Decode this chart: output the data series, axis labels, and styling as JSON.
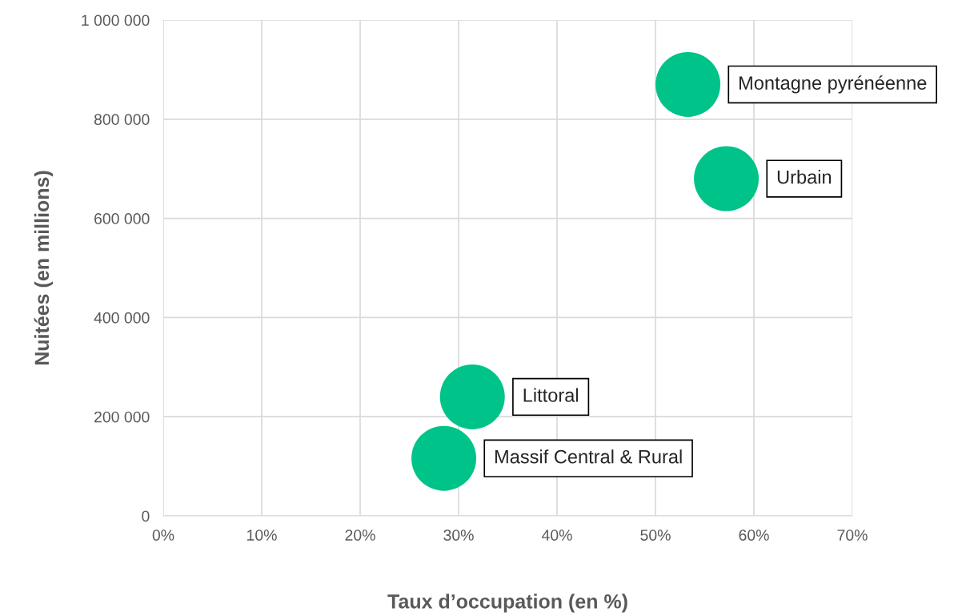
{
  "chart_data": {
    "type": "scatter",
    "xlabel": "Taux d’occupation (en %)",
    "ylabel": "Nuitées (en millions)",
    "x": [
      53.3,
      57.2,
      31.4,
      28.5
    ],
    "series": [
      {
        "color": "#00c389",
        "values": [
          870000,
          680000,
          240000,
          116000
        ]
      }
    ],
    "marker": "circle",
    "xlim": [
      0,
      70
    ],
    "xticks": [
      {
        "value": 0,
        "label": "0%"
      },
      {
        "value": 10,
        "label": "10%"
      },
      {
        "value": 20,
        "label": "20%"
      },
      {
        "value": 30,
        "label": "30%"
      },
      {
        "value": 40,
        "label": "40%"
      },
      {
        "value": 50,
        "label": "50%"
      },
      {
        "value": 60,
        "label": "60%"
      },
      {
        "value": 70,
        "label": "70%"
      }
    ],
    "ylim": [
      0,
      1000000
    ],
    "yticks": [
      {
        "value": 0,
        "label": "0"
      },
      {
        "value": 200000,
        "label": "200 000"
      },
      {
        "value": 400000,
        "label": "400 000"
      },
      {
        "value": 600000,
        "label": "600 000"
      },
      {
        "value": 800000,
        "label": "800 000"
      },
      {
        "value": 1000000,
        "label": "1 000 000"
      }
    ],
    "grid": true,
    "annotations": [
      {
        "text": "Montagne pyrénéenne",
        "x": 53.3,
        "y": 870000
      },
      {
        "text": "Urbain",
        "x": 57.2,
        "y": 680000
      },
      {
        "text": "Littoral",
        "x": 31.4,
        "y": 240000
      },
      {
        "text": "Massif Central & Rural",
        "x": 28.5,
        "y": 116000
      }
    ]
  }
}
